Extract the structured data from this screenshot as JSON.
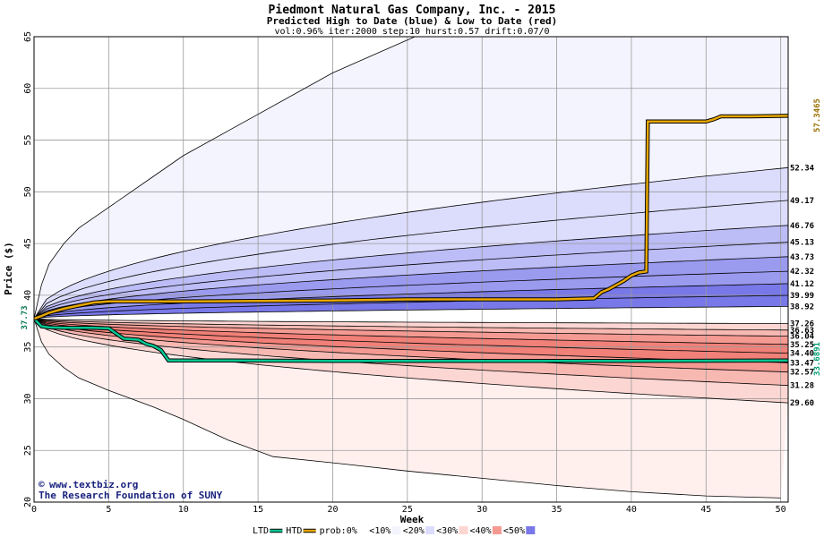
{
  "chart_data": {
    "type": "line",
    "title": "Piedmont Natural Gas Company, Inc. - 2015",
    "subtitle": "Predicted High to Date (blue) &  Low to Date (red)",
    "params": "vol:0.96% iter:2000 step:10 hurst:0.57 drift:0.07/0",
    "xlabel": "Week",
    "ylabel": "Price ($)",
    "xlim": [
      0,
      50.5
    ],
    "ylim": [
      20,
      65
    ],
    "x_ticks": [
      0,
      5,
      10,
      15,
      20,
      25,
      30,
      35,
      40,
      45,
      50
    ],
    "y_ticks": [
      20,
      25,
      30,
      35,
      40,
      45,
      50,
      55,
      60,
      65
    ],
    "start_price": 37.73,
    "start_label": "37.73",
    "high_levels": [
      52.34,
      49.17,
      46.76,
      45.13,
      43.73,
      42.32,
      41.12,
      39.99,
      38.92
    ],
    "high_level_labels": [
      "52.34",
      "49.17",
      "46.76",
      "45.13",
      "43.73",
      "42.32",
      "41.12",
      "39.99",
      "38.92"
    ],
    "low_levels": [
      37.26,
      36.63,
      36.04,
      35.25,
      34.4,
      33.47,
      32.57,
      31.28,
      29.6
    ],
    "low_level_labels": [
      "37.26",
      "36.63",
      "36.04",
      "35.25",
      "34.40",
      "33.47",
      "32.57",
      "31.28",
      "29.60"
    ],
    "outer_high": {
      "x": [
        0,
        0.5,
        1,
        2,
        3,
        5,
        8,
        10,
        15,
        20,
        25.5
      ],
      "y": [
        37.73,
        41,
        43,
        45,
        46.5,
        48.5,
        51.5,
        53.5,
        57.5,
        61.5,
        65
      ]
    },
    "outer_low": {
      "x": [
        0,
        0.5,
        1,
        2,
        3,
        5,
        8,
        10,
        13,
        16,
        20,
        25,
        30,
        35,
        40,
        45,
        50
      ],
      "y": [
        37.73,
        35.5,
        34.3,
        33,
        32,
        30.8,
        29.2,
        28,
        26,
        24.4,
        23.8,
        23,
        22.3,
        21.6,
        21,
        20.6,
        20.4
      ]
    },
    "band_colors": {
      "high_band": [
        "#f4f4ff",
        "#dcdcfc",
        "#bcbcf6",
        "#9a9aef",
        "#7878e8"
      ],
      "low_band": [
        "#fff0ee",
        "#fcd6d2",
        "#f8b8b2",
        "#f49a92",
        "#f08078"
      ]
    },
    "series": [
      {
        "name": "LTD",
        "color": "#00c894",
        "x": [
          0,
          0.5,
          1,
          2,
          3,
          4,
          5,
          5.5,
          6,
          6.5,
          7,
          7.5,
          8,
          8.5,
          9,
          12,
          20,
          30,
          40,
          50.5
        ],
        "y": [
          37.73,
          37.0,
          36.9,
          36.85,
          36.85,
          36.85,
          36.8,
          36.3,
          35.8,
          35.75,
          35.7,
          35.3,
          35.1,
          34.7,
          33.7,
          33.7,
          33.65,
          33.65,
          33.65,
          33.6891
        ]
      },
      {
        "name": "HTD",
        "color": "#e8a800",
        "x": [
          0,
          0.5,
          1,
          2,
          3,
          4,
          5,
          8,
          10,
          15,
          20,
          25,
          30,
          35,
          37.5,
          38,
          38.5,
          39,
          39.5,
          40,
          40.5,
          41,
          41.1,
          43,
          45,
          45.5,
          46,
          48,
          50.5
        ],
        "y": [
          37.73,
          38.0,
          38.3,
          38.7,
          39.0,
          39.3,
          39.4,
          39.4,
          39.4,
          39.45,
          39.5,
          39.6,
          39.6,
          39.6,
          39.7,
          40.3,
          40.6,
          41.0,
          41.4,
          41.9,
          42.2,
          42.3,
          56.8,
          56.8,
          56.8,
          57.0,
          57.3,
          57.3,
          57.3465
        ]
      }
    ],
    "ltd_end_label": "33.6891",
    "htd_end_label": "57.3465",
    "legend": [
      "LTD",
      "HTD",
      "prob:0%",
      "<10%",
      "<20%",
      "<30%",
      "<40%",
      "<50%"
    ],
    "grid": true
  },
  "credit": {
    "copyright": "www.textbiz.org",
    "org": "The Research Foundation of SUNY"
  }
}
